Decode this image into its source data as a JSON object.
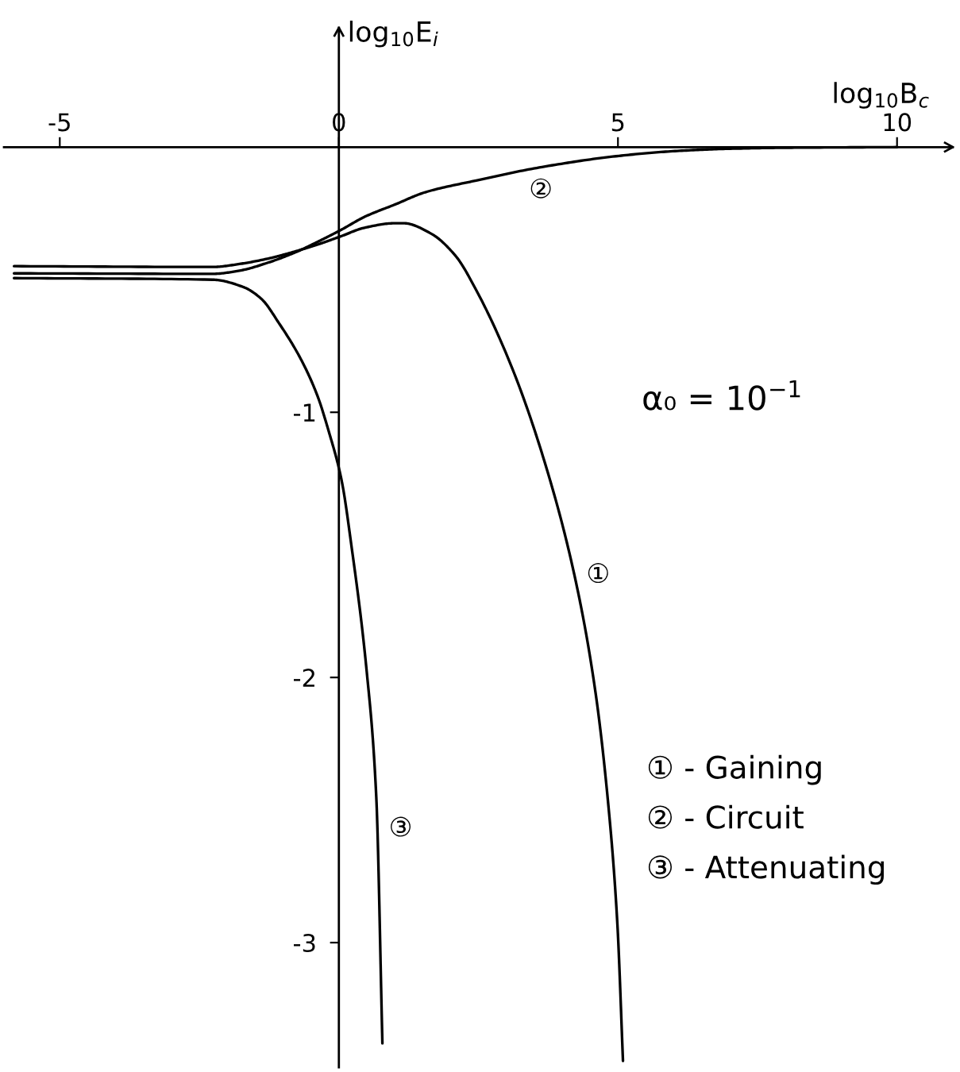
{
  "chart_data": {
    "type": "line",
    "xlabel": "log$_{10}$B$_{c}$",
    "ylabel": "log$_{10}$E$_{i}$",
    "xlim": [
      -6,
      11
    ],
    "ylim": [
      -3.47,
      0.45
    ],
    "xticks": [
      -5,
      0,
      5,
      10
    ],
    "yticks": [
      -1,
      -2,
      -3
    ],
    "line_style": "solid",
    "series": [
      {
        "name": "①",
        "color": "#000000",
        "x": [
          -5.82,
          -2.26,
          -1.76,
          -1.26,
          -0.76,
          -0.36,
          0.04,
          0.46,
          1.01,
          1.16,
          1.65,
          2.09,
          2.46,
          3.09,
          3.68,
          4.22,
          4.59,
          4.84,
          4.99,
          5.09
        ],
        "values": [
          -0.449,
          -0.452,
          -0.44,
          -0.42,
          -0.392,
          -0.366,
          -0.336,
          -0.304,
          -0.287,
          -0.287,
          -0.326,
          -0.41,
          -0.539,
          -0.826,
          -1.183,
          -1.614,
          -2.045,
          -2.509,
          -2.931,
          -3.446
        ]
      },
      {
        "name": "②",
        "color": "#000000",
        "x": [
          -5.82,
          -2.26,
          -1.76,
          -1.26,
          -0.76,
          -0.36,
          0.04,
          0.46,
          1.01,
          1.55,
          2.46,
          3.64,
          5.02,
          6.02,
          7.01,
          8.16,
          10.0
        ],
        "values": [
          -0.476,
          -0.478,
          -0.465,
          -0.435,
          -0.395,
          -0.355,
          -0.312,
          -0.263,
          -0.216,
          -0.17,
          -0.126,
          -0.075,
          -0.033,
          -0.015,
          -0.006,
          -0.002,
          0
        ]
      },
      {
        "name": "③",
        "color": "#000000",
        "x": [
          -5.82,
          -2.26,
          -1.72,
          -1.39,
          -1.07,
          -0.68,
          -0.38,
          -0.17,
          0,
          0.07,
          0.21,
          0.5,
          0.67,
          0.78
        ],
        "values": [
          -0.494,
          -0.5,
          -0.527,
          -0.572,
          -0.665,
          -0.8,
          -0.94,
          -1.08,
          -1.21,
          -1.28,
          -1.48,
          -1.98,
          -2.45,
          -3.38
        ]
      }
    ],
    "annotations": [
      "α₀ = 10$^{−1}$",
      "① - Gaining",
      "② - Circuit",
      "③ - Attenuating"
    ]
  }
}
